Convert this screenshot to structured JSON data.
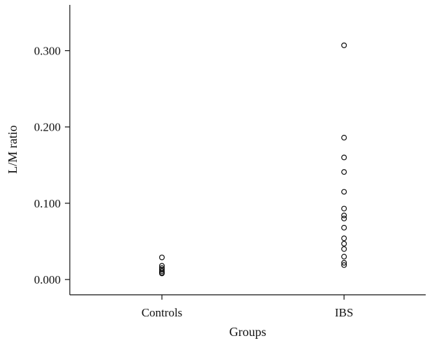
{
  "chart_data": {
    "type": "scatter",
    "title": "",
    "xlabel": "Groups",
    "ylabel": "L/M ratio",
    "categories": [
      "Controls",
      "IBS"
    ],
    "yticks": [
      "0.000",
      "0.100",
      "0.200",
      "0.300"
    ],
    "ylim": [
      -0.02,
      0.36
    ],
    "grid": false,
    "legend": "none",
    "marker": "open-circle",
    "series": [
      {
        "category": "Controls",
        "values": [
          0.029,
          0.018,
          0.015,
          0.013,
          0.011,
          0.009,
          0.008
        ]
      },
      {
        "category": "IBS",
        "values": [
          0.307,
          0.186,
          0.16,
          0.141,
          0.115,
          0.093,
          0.084,
          0.08,
          0.068,
          0.054,
          0.047,
          0.04,
          0.03,
          0.022,
          0.019
        ]
      }
    ],
    "colors": {
      "axis": "#111111",
      "marker_stroke": "#111111",
      "background": "#ffffff"
    }
  }
}
